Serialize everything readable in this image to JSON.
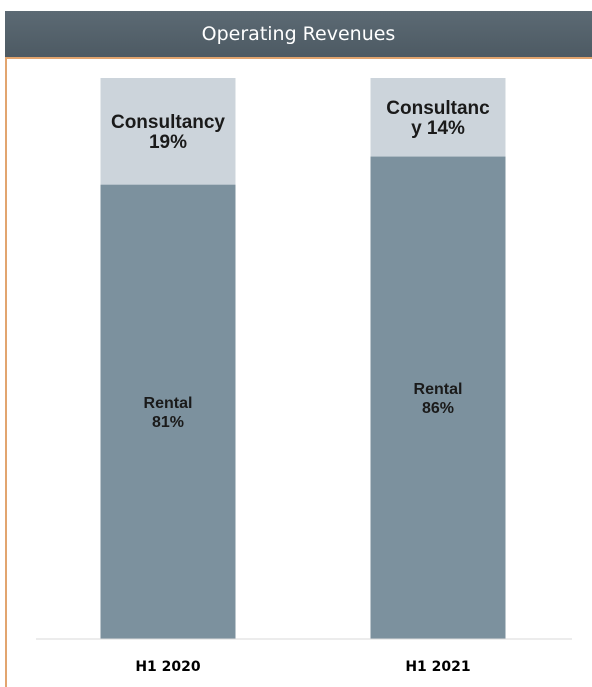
{
  "chart_data": {
    "type": "bar",
    "stacked": true,
    "percent_stacked": true,
    "title": "Operating Revenues",
    "categories": [
      "H1 2020",
      "H1 2021"
    ],
    "series": [
      {
        "name": "Rental",
        "values": [
          81,
          86
        ],
        "color": "#7c919e",
        "labels": [
          [
            "Rental",
            "81%"
          ],
          [
            "Rental",
            "86%"
          ]
        ]
      },
      {
        "name": "Consultancy",
        "values": [
          19,
          14
        ],
        "color": "#ccd4db",
        "labels": [
          [
            "Consultancy",
            "19%"
          ],
          [
            "Consultanc",
            "y 14%"
          ]
        ]
      }
    ],
    "ylim": [
      0,
      100
    ],
    "grid": false,
    "legend": "none"
  }
}
